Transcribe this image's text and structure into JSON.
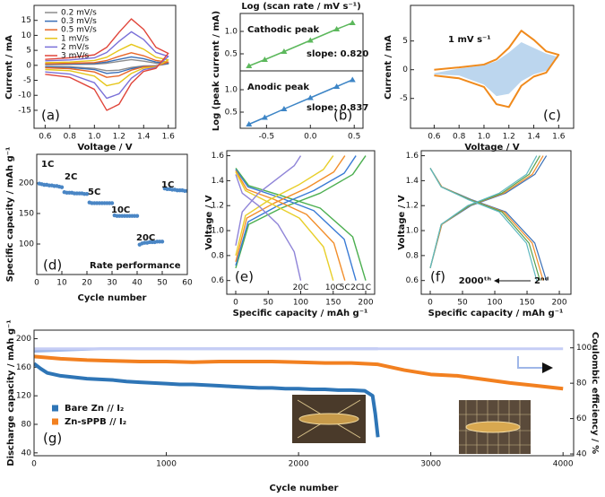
{
  "chart_data": [
    {
      "type": "line",
      "panel_label": "(a)",
      "xlabel": "Voltage / V",
      "ylabel": "Current / mA",
      "legend": "upper left",
      "xlim": [
        0.51,
        1.66
      ],
      "ylim": [
        -21,
        20
      ],
      "xticks": [
        0.6,
        0.8,
        {
          "value": 1,
          "label": "1.0"
        },
        1.2,
        1.4,
        1.6
      ],
      "yticks": [
        -15,
        -10,
        -5,
        0,
        5,
        10,
        15
      ],
      "x": [
        0.6,
        0.8,
        1.0,
        1.1,
        1.2,
        1.3,
        1.4,
        1.5,
        1.6,
        1.5,
        1.4,
        1.3,
        1.2,
        1.1,
        1.0,
        0.8,
        0.6
      ],
      "series": [
        {
          "name": "0.2 mV/s",
          "color": "#8c8c8c",
          "values": [
            0.2,
            0.3,
            0.4,
            0.7,
            1.3,
            1.9,
            1.4,
            0.7,
            0.5,
            -0.1,
            -0.2,
            -0.7,
            -1.6,
            -1.8,
            -1,
            -0.5,
            -0.4
          ]
        },
        {
          "name": "0.3 mV/s",
          "color": "#3b6fb6",
          "values": [
            0.4,
            0.5,
            0.6,
            1.1,
            2,
            2.8,
            2.2,
            1.1,
            0.7,
            -0.2,
            -0.4,
            -1.1,
            -2.3,
            -2.7,
            -1.4,
            -0.7,
            -0.5
          ]
        },
        {
          "name": "0.5 mV/s",
          "color": "#e8672a",
          "values": [
            0.5,
            0.7,
            0.9,
            1.6,
            3,
            4.2,
            3.2,
            1.6,
            1.1,
            -0.3,
            -0.5,
            -1.6,
            -3.5,
            -4,
            -2.2,
            -1.1,
            -0.8
          ]
        },
        {
          "name": "1 mV/s",
          "color": "#e6c619",
          "values": [
            0.9,
            1.1,
            1.6,
            2.7,
            5,
            7,
            5.4,
            2.7,
            1.8,
            -0.5,
            -0.9,
            -2.7,
            -5.9,
            -6.8,
            -3.6,
            -1.8,
            -1.4
          ]
        },
        {
          "name": "2 mV/s",
          "color": "#7a70d8",
          "values": [
            1.5,
            1.8,
            2.5,
            4.3,
            8,
            11.2,
            8.6,
            4.3,
            3,
            -0.7,
            -1.4,
            -4.3,
            -9.5,
            -11,
            -5.8,
            -2.9,
            -2.2
          ]
        },
        {
          "name": "3 mV/s",
          "color": "#e0453a",
          "values": [
            2,
            2.5,
            3.5,
            6,
            11,
            15.5,
            12,
            6,
            4,
            -1,
            -2,
            -6,
            -13,
            -15,
            -8,
            -4,
            -3
          ]
        }
      ]
    },
    {
      "type": "line",
      "markers": true,
      "xlabel": "Log (scan rate / mV s⁻¹)",
      "ylabel": "Log (peak current / mA)",
      "annotations": [
        "Cathodic peak",
        "slope: 0.820"
      ],
      "xlim": [
        -0.8,
        0.6
      ],
      "ylim": [
        0.12,
        1.4
      ],
      "yticks": [
        0.5,
        {
          "value": 1,
          "label": "1.0"
        }
      ],
      "x": [
        -0.7,
        -0.52,
        -0.3,
        0,
        0.3,
        0.48
      ],
      "series": [
        {
          "color": "#5cb85c",
          "values": [
            0.23,
            0.37,
            0.55,
            0.8,
            1.05,
            1.19
          ]
        }
      ]
    },
    {
      "type": "line",
      "markers": true,
      "panel_label": "(b)",
      "annotations": [
        "Anodic peak",
        "slope: 0.837"
      ],
      "xlim": [
        -0.8,
        0.6
      ],
      "ylim": [
        0.14,
        1.42
      ],
      "xticks": [
        -0.5,
        {
          "value": 0,
          "label": "0.0"
        },
        0.5
      ],
      "yticks": [
        0.5,
        {
          "value": 1,
          "label": "1.0"
        }
      ],
      "x": [
        -0.7,
        -0.52,
        -0.3,
        0,
        0.3,
        0.48
      ],
      "series": [
        {
          "color": "#3d85c6",
          "values": [
            0.23,
            0.38,
            0.57,
            0.82,
            1.07,
            1.22
          ]
        }
      ]
    },
    {
      "type": "line",
      "panel_label": "(c)",
      "xlabel": "Voltage / V",
      "ylabel": "Current / mA",
      "annotations": [
        "1 mV s⁻¹"
      ],
      "xlim": [
        0.41,
        1.72
      ],
      "ylim": [
        -10.2,
        11.2
      ],
      "xticks": [
        0.6,
        0.8,
        {
          "value": 1,
          "label": "1.0"
        },
        1.2,
        1.4,
        1.6
      ],
      "yticks": [
        -5,
        0,
        5
      ],
      "x": [
        0.6,
        0.8,
        1.0,
        1.1,
        1.2,
        1.3,
        1.4,
        1.5,
        1.6,
        1.5,
        1.4,
        1.3,
        1.2,
        1.1,
        1.0,
        0.8,
        0.6
      ],
      "series": [
        {
          "color": "#bcd6ee",
          "area": true,
          "values": [
            -0.6,
            0.2,
            0.8,
            1.5,
            3,
            4.8,
            3.8,
            2.8,
            2.2,
            -0.2,
            -0.8,
            -2,
            -4.2,
            -4.6,
            -2.6,
            -1,
            -0.8
          ]
        },
        {
          "color": "#f08a1c",
          "values": [
            0,
            0.4,
            0.9,
            1.8,
            3.8,
            6.8,
            5.2,
            3.2,
            2.6,
            -0.5,
            -1.2,
            -2.8,
            -6.5,
            -6,
            -3,
            -1.5,
            -1
          ]
        }
      ]
    },
    {
      "type": "scatter",
      "panel_label": "(d)",
      "xlabel": "Cycle number",
      "ylabel": "Specific capacity / mAh g⁻¹",
      "annotations": [
        "1C",
        "2C",
        "5C",
        "10C",
        "20C",
        "1C",
        "Rate performance"
      ],
      "xlim": [
        0,
        60
      ],
      "ylim": [
        50,
        247
      ],
      "xticks": [
        0,
        10,
        20,
        30,
        40,
        50,
        60
      ],
      "yticks": [
        100,
        150,
        200
      ],
      "x": [
        1,
        2,
        3,
        4,
        5,
        6,
        7,
        8,
        9,
        10,
        11,
        12,
        13,
        14,
        15,
        16,
        17,
        18,
        19,
        20,
        21,
        22,
        23,
        24,
        25,
        26,
        27,
        28,
        29,
        30,
        31,
        32,
        33,
        34,
        35,
        36,
        37,
        38,
        39,
        40,
        41,
        42,
        43,
        44,
        45,
        46,
        47,
        48,
        49,
        50,
        51,
        52,
        53,
        54,
        55,
        56,
        57,
        58,
        59,
        60
      ],
      "series": [
        {
          "color": "#4a86c5",
          "values": [
            199,
            198,
            197,
            197,
            196,
            196,
            195,
            195,
            194,
            193,
            185,
            184,
            184,
            184,
            183,
            183,
            183,
            183,
            182,
            182,
            168,
            167,
            167,
            167,
            167,
            167,
            167,
            167,
            167,
            167,
            147,
            146,
            146,
            146,
            146,
            146,
            146,
            146,
            146,
            146,
            99,
            101,
            102,
            102,
            103,
            103,
            103,
            104,
            104,
            104,
            191,
            190,
            190,
            189,
            189,
            188,
            188,
            188,
            187,
            187
          ]
        }
      ]
    },
    {
      "type": "line",
      "label_ends": true,
      "panel_label": "(e)",
      "xlabel": "Specific capacity / mAh g⁻¹",
      "ylabel": "Voltage / V",
      "xlim": [
        -13.8,
        213.8
      ],
      "ylim": [
        0.49,
        1.64
      ],
      "xticks": [
        0,
        50,
        100,
        150,
        200
      ],
      "yticks": [
        0.6,
        0.8,
        {
          "value": 1,
          "label": "1.0"
        },
        1.2,
        1.4,
        1.6
      ],
      "series": [
        {
          "color": "#4caf50",
          "x": [
            0,
            20,
            70,
            130,
            180,
            200
          ],
          "values": [
            0.7,
            1.05,
            1.18,
            1.3,
            1.45,
            1.6
          ]
        },
        {
          "name": "1C",
          "color": "#4caf50",
          "x": [
            0,
            20,
            70,
            130,
            180,
            200
          ],
          "values": [
            1.5,
            1.36,
            1.28,
            1.18,
            0.95,
            0.6
          ]
        },
        {
          "color": "#3a7bd5",
          "x": [
            0,
            19,
            65,
            120,
            167,
            185
          ],
          "values": [
            0.72,
            1.07,
            1.2,
            1.32,
            1.46,
            1.6
          ]
        },
        {
          "name": "2C",
          "color": "#3a7bd5",
          "x": [
            0,
            19,
            65,
            120,
            167,
            185
          ],
          "values": [
            1.49,
            1.35,
            1.27,
            1.16,
            0.93,
            0.6
          ]
        },
        {
          "color": "#f28e2b",
          "x": [
            0,
            17,
            59,
            109,
            151,
            168
          ],
          "values": [
            0.75,
            1.1,
            1.22,
            1.34,
            1.47,
            1.6
          ]
        },
        {
          "name": "5C",
          "color": "#f28e2b",
          "x": [
            0,
            17,
            59,
            109,
            151,
            168
          ],
          "values": [
            1.48,
            1.33,
            1.25,
            1.13,
            0.9,
            0.6
          ]
        },
        {
          "color": "#e8cf2a",
          "x": [
            0,
            15,
            53,
            98,
            135,
            150
          ],
          "values": [
            0.8,
            1.12,
            1.25,
            1.37,
            1.49,
            1.6
          ]
        },
        {
          "name": "10C",
          "color": "#e8cf2a",
          "x": [
            0,
            15,
            53,
            98,
            135,
            150
          ],
          "values": [
            1.47,
            1.32,
            1.22,
            1.1,
            0.87,
            0.6
          ]
        },
        {
          "color": "#8f84d8",
          "x": [
            0,
            10,
            35,
            65,
            90,
            100
          ],
          "values": [
            0.88,
            1.15,
            1.3,
            1.42,
            1.52,
            1.6
          ]
        },
        {
          "name": "20C",
          "color": "#8f84d8",
          "x": [
            0,
            10,
            35,
            65,
            90,
            100
          ],
          "values": [
            1.45,
            1.3,
            1.2,
            1.05,
            0.83,
            0.6
          ]
        }
      ]
    },
    {
      "type": "line",
      "panel_label": "(f)",
      "xlabel": "Specific capacity / mAh g⁻¹",
      "ylabel": "Voltage / V",
      "annotations": [
        "2000ᵗʰ",
        "2ⁿᵈ"
      ],
      "xlim": [
        -13.9,
        218
      ],
      "ylim": [
        0.49,
        1.64
      ],
      "xticks": [
        0,
        50,
        100,
        150,
        200
      ],
      "yticks": [
        0.6,
        0.8,
        {
          "value": 1,
          "label": "1.0"
        },
        1.2,
        1.4,
        1.6
      ],
      "series": [
        {
          "color": "#3b6fb6",
          "x": [
            0,
            18,
            63,
            117,
            162,
            180
          ],
          "values": [
            0.7,
            1.05,
            1.2,
            1.3,
            1.45,
            1.6
          ]
        },
        {
          "color": "#3b6fb6",
          "x": [
            0,
            18,
            63,
            117,
            162,
            180
          ],
          "values": [
            1.5,
            1.35,
            1.25,
            1.15,
            0.9,
            0.6
          ]
        },
        {
          "color": "#f28e2b",
          "x": [
            0,
            18,
            61,
            114,
            158,
            175
          ],
          "values": [
            0.7,
            1.05,
            1.2,
            1.3,
            1.45,
            1.6
          ]
        },
        {
          "color": "#f28e2b",
          "x": [
            0,
            18,
            61,
            114,
            158,
            175
          ],
          "values": [
            1.5,
            1.35,
            1.25,
            1.15,
            0.9,
            0.6
          ]
        },
        {
          "color": "#59a14f",
          "x": [
            0,
            17,
            60,
            111,
            153,
            170
          ],
          "values": [
            0.7,
            1.05,
            1.2,
            1.3,
            1.45,
            1.6
          ]
        },
        {
          "color": "#59a14f",
          "x": [
            0,
            17,
            60,
            111,
            153,
            170
          ],
          "values": [
            1.5,
            1.35,
            1.25,
            1.15,
            0.9,
            0.6
          ]
        },
        {
          "color": "#5fb8c0",
          "x": [
            0,
            17,
            58,
            107,
            149,
            165
          ],
          "values": [
            0.7,
            1.05,
            1.2,
            1.3,
            1.45,
            1.6
          ]
        },
        {
          "color": "#5fb8c0",
          "x": [
            0,
            17,
            58,
            107,
            149,
            165
          ],
          "values": [
            1.5,
            1.35,
            1.25,
            1.15,
            0.9,
            0.6
          ]
        }
      ]
    },
    {
      "type": "line",
      "panel_label": "(g)",
      "xlabel": "Cycle number",
      "ylabel": "Discharge capacity / mAh g⁻¹",
      "y2label": "Coulombic efficiency / %",
      "legend": "lower left",
      "xlim": [
        0,
        4080
      ],
      "ylim": [
        36,
        212
      ],
      "y2lim": [
        39,
        110
      ],
      "xticks": [
        0,
        1000,
        2000,
        3000,
        4000
      ],
      "yticks": [
        40,
        80,
        120,
        160,
        200
      ],
      "y2ticks": [
        40,
        60,
        80,
        100
      ],
      "series": [
        {
          "color": "#9fb7e8",
          "axis": "y2",
          "x": [
            0,
            500,
            1000,
            1500,
            2000,
            2500,
            2600
          ],
          "values": [
            98,
            99.5,
            99.5,
            99.5,
            99.5,
            99.5,
            99.5
          ]
        },
        {
          "color": "#c5cdf5",
          "axis": "y2",
          "x": [
            0,
            1000,
            2000,
            3000,
            4000
          ],
          "values": [
            99.5,
            99.5,
            99.5,
            99.5,
            99.5
          ]
        },
        {
          "name": "Bare Zn // I₂",
          "color": "#2e75b6",
          "x": [
            0,
            50,
            100,
            200,
            300,
            400,
            500,
            600,
            700,
            800,
            900,
            1000,
            1100,
            1200,
            1300,
            1400,
            1500,
            1600,
            1700,
            1800,
            1900,
            2000,
            2100,
            2200,
            2300,
            2400,
            2500,
            2560,
            2580,
            2600
          ],
          "values": [
            165,
            158,
            152,
            148,
            146,
            144,
            143,
            142,
            140,
            139,
            138,
            137,
            136,
            136,
            135,
            134,
            133,
            132,
            131,
            131,
            130,
            130,
            129,
            129,
            128,
            128,
            127,
            120,
            95,
            62
          ]
        },
        {
          "name": "Zn-sPPB // I₂",
          "color": "#f28020",
          "x": [
            0,
            200,
            400,
            600,
            800,
            1000,
            1200,
            1400,
            1600,
            1800,
            2000,
            2200,
            2400,
            2600,
            2800,
            3000,
            3200,
            3400,
            3600,
            3800,
            4000
          ],
          "values": [
            175,
            172,
            170,
            169,
            168,
            168,
            167,
            168,
            168,
            168,
            167,
            166,
            166,
            164,
            156,
            150,
            148,
            143,
            138,
            134,
            130
          ]
        }
      ]
    }
  ]
}
